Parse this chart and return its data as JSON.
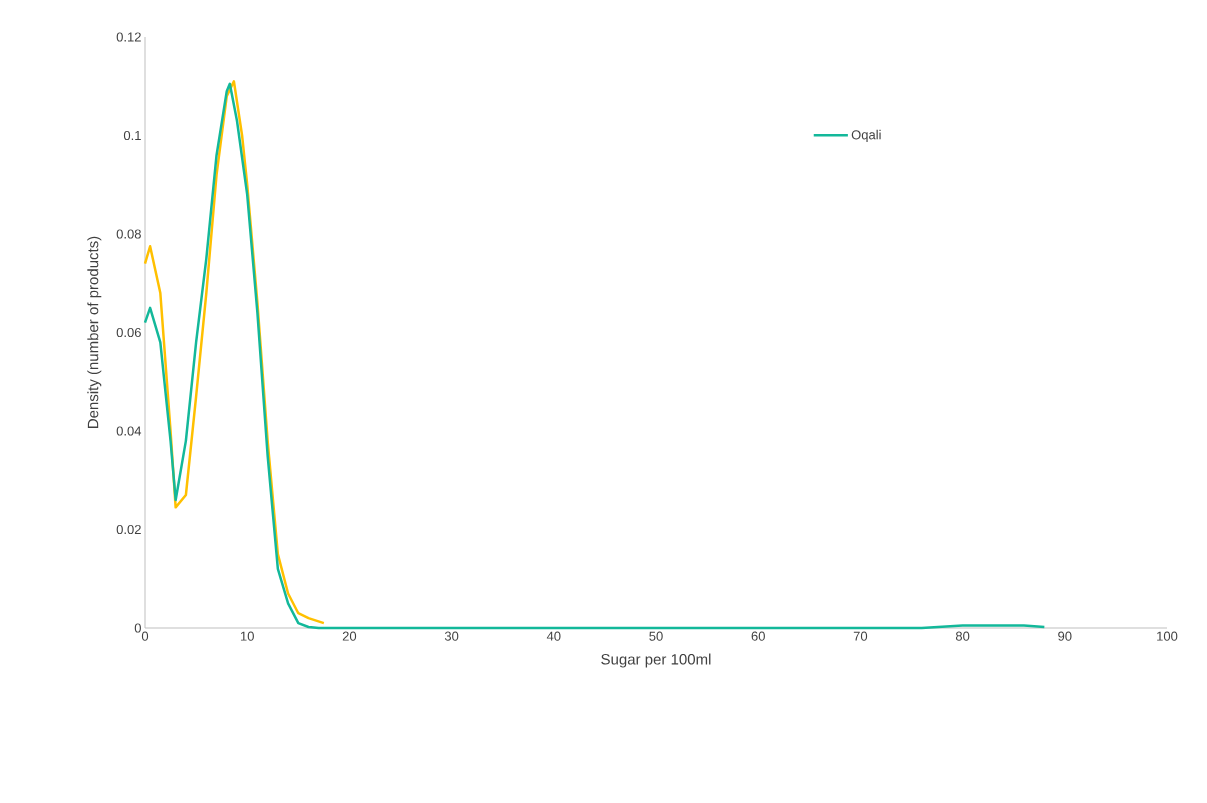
{
  "chart_data": {
    "type": "line",
    "xlabel": "Sugar per 100ml",
    "ylabel": "Density (number of products)",
    "xlim": [
      0,
      100
    ],
    "xticks": [
      0,
      10,
      20,
      30,
      40,
      50,
      60,
      70,
      80,
      90,
      100
    ],
    "ylim": [
      0,
      0.12
    ],
    "yticks": [
      0,
      0.02,
      0.04,
      0.06,
      0.08,
      0.1,
      0.12
    ],
    "grid": false,
    "legend": "right",
    "marker": "none",
    "line_style": "solid",
    "series": [
      {
        "color": "#ffc000",
        "x": [
          0,
          0.5,
          1.5,
          2.5,
          3,
          4,
          5,
          6,
          7,
          8,
          8.7,
          9.5,
          10,
          11,
          12,
          13,
          14,
          15,
          16,
          17.5
        ],
        "values": [
          0.074,
          0.0775,
          0.068,
          0.04,
          0.0245,
          0.027,
          0.047,
          0.068,
          0.092,
          0.108,
          0.111,
          0.1,
          0.09,
          0.066,
          0.038,
          0.015,
          0.007,
          0.003,
          0.002,
          0.001
        ]
      },
      {
        "name": "Oqali",
        "color": "#13b89a",
        "x": [
          0,
          0.5,
          1.5,
          2.5,
          3,
          4,
          5,
          6,
          7,
          8,
          8.3,
          9,
          10,
          11,
          12,
          13,
          14,
          15,
          16,
          17,
          30,
          50,
          76,
          80,
          86,
          88
        ],
        "values": [
          0.062,
          0.065,
          0.058,
          0.038,
          0.026,
          0.038,
          0.058,
          0.075,
          0.096,
          0.109,
          0.1105,
          0.103,
          0.088,
          0.064,
          0.035,
          0.012,
          0.005,
          0.001,
          0.0002,
          0,
          0,
          0,
          0,
          0.0005,
          0.0005,
          0.0002
        ]
      }
    ]
  }
}
